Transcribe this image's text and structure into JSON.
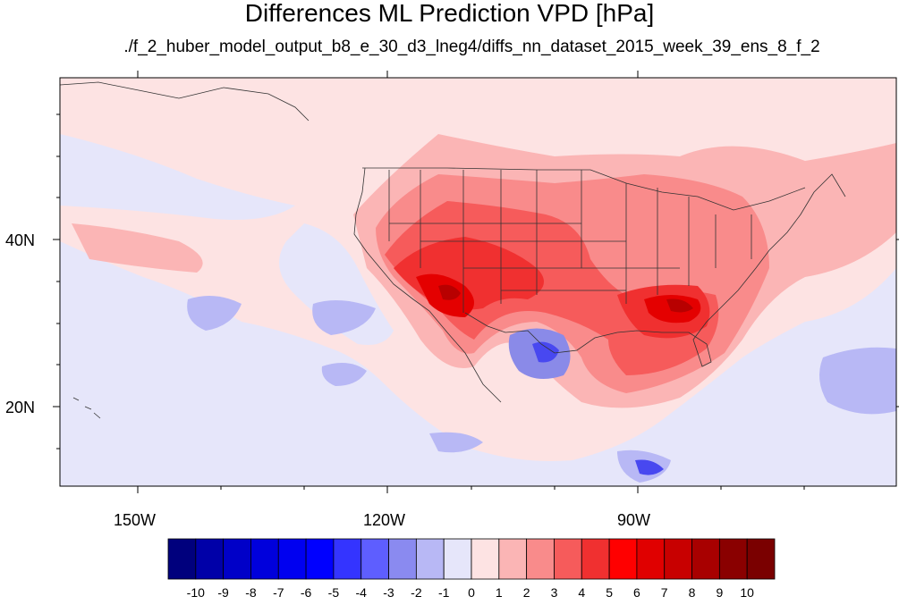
{
  "title": "Differences ML Prediction VPD [hPa]",
  "subtitle": "./f_2_huber_model_output_b8_e_30_d3_lneg4/diffs_nn_dataset_2015_week_39_ens_8_f_2",
  "map": {
    "x_ticks": [
      "150W",
      "120W",
      "90W"
    ],
    "y_ticks": [
      "40N",
      "20N"
    ],
    "colors": {
      "ocean_light_blue": "#e6e6fa",
      "light_pink": "#fde3e3",
      "pink": "#fbb5b5",
      "salmon": "#f98b8b",
      "red_light": "#f65b5b",
      "red": "#f03030",
      "red_strong": "#e40000",
      "red_dark": "#b80000",
      "blue_mid": "#8a8ae8",
      "blue_strong": "#4848f0",
      "border_line": "#333333"
    }
  },
  "colorbar": {
    "labels": [
      "-10",
      "-9",
      "-8",
      "-7",
      "-6",
      "-5",
      "-4",
      "-3",
      "-2",
      "-1",
      "0",
      "1",
      "2",
      "3",
      "4",
      "5",
      "6",
      "7",
      "8",
      "9",
      "10"
    ],
    "colors": [
      "#00007d",
      "#0000a8",
      "#0000c8",
      "#0000dc",
      "#0000f0",
      "#0000ff",
      "#3434ff",
      "#5e5eff",
      "#8a8af0",
      "#b8b8f5",
      "#e6e6fa",
      "#fde3e3",
      "#fbb5b5",
      "#f98b8b",
      "#f65b5b",
      "#f03030",
      "#ff0000",
      "#e00000",
      "#c80000",
      "#a80000",
      "#8a0000",
      "#7a0000"
    ]
  }
}
